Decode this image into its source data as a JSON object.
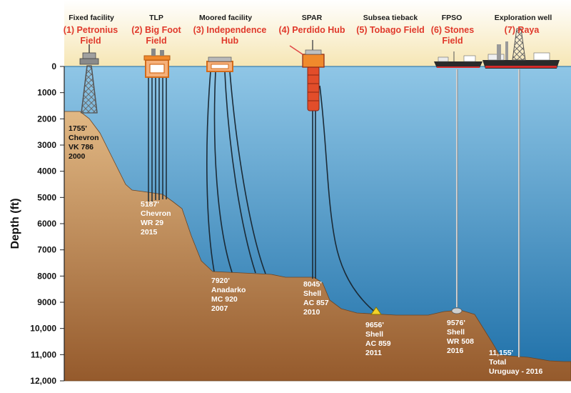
{
  "y_axis": {
    "label": "Depth (ft)",
    "ticks": [
      {
        "value": 0,
        "label": "0"
      },
      {
        "value": 1000,
        "label": "1000"
      },
      {
        "value": 2000,
        "label": "2000"
      },
      {
        "value": 3000,
        "label": "3000"
      },
      {
        "value": 4000,
        "label": "4000"
      },
      {
        "value": 5000,
        "label": "5000"
      },
      {
        "value": 6000,
        "label": "6000"
      },
      {
        "value": 7000,
        "label": "7000"
      },
      {
        "value": 8000,
        "label": "8000"
      },
      {
        "value": 9000,
        "label": "9000"
      },
      {
        "value": 10000,
        "label": "10,000"
      },
      {
        "value": 11000,
        "label": "11,000"
      },
      {
        "value": 12000,
        "label": "12,000"
      }
    ]
  },
  "facilities": [
    {
      "type": "Fixed facility",
      "name": [
        "(1) Petronius",
        "Field"
      ],
      "depth_ft": 1755,
      "annotation": [
        "1755'",
        "Chevron",
        "VK 786",
        "2000"
      ]
    },
    {
      "type": "TLP",
      "name": [
        "(2) Big Foot",
        "Field"
      ],
      "depth_ft": 5187,
      "annotation": [
        "5187'",
        "Chevron",
        "WR 29",
        "2015"
      ]
    },
    {
      "type": "Moored facility",
      "name": [
        "(3) Independence",
        "Hub"
      ],
      "depth_ft": 7920,
      "annotation": [
        "7920'",
        "Anadarko",
        "MC 920",
        "2007"
      ]
    },
    {
      "type": "SPAR",
      "name": [
        "(4) Perdido Hub"
      ],
      "depth_ft": 8045,
      "annotation": [
        "8045'",
        "Shell",
        "AC 857",
        "2010"
      ]
    },
    {
      "type": "Subsea tieback",
      "name": [
        "(5) Tobago Field"
      ],
      "depth_ft": 9656,
      "annotation": [
        "9656'",
        "Shell",
        "AC 859",
        "2011"
      ]
    },
    {
      "type": "FPSO",
      "name": [
        "(6) Stones",
        "Field"
      ],
      "depth_ft": 9576,
      "annotation": [
        "9576'",
        "Shell",
        "WR 508",
        "2016"
      ]
    },
    {
      "type": "Exploration well",
      "name": [
        "(7) Raya"
      ],
      "depth_ft": 11155,
      "annotation": [
        "11,155'",
        "Total",
        "Uruguay - 2016"
      ]
    }
  ],
  "colors": {
    "sky_top": "#ffffff",
    "sky_bottom": "#f6e6b4",
    "sea_top": "#8fc6e6",
    "sea_bottom": "#1d6fa8",
    "seabed_top": "#e1b884",
    "seabed_bottom": "#955a2c",
    "label_red": "#e0392b",
    "platform_orange": "#f08a2c"
  }
}
